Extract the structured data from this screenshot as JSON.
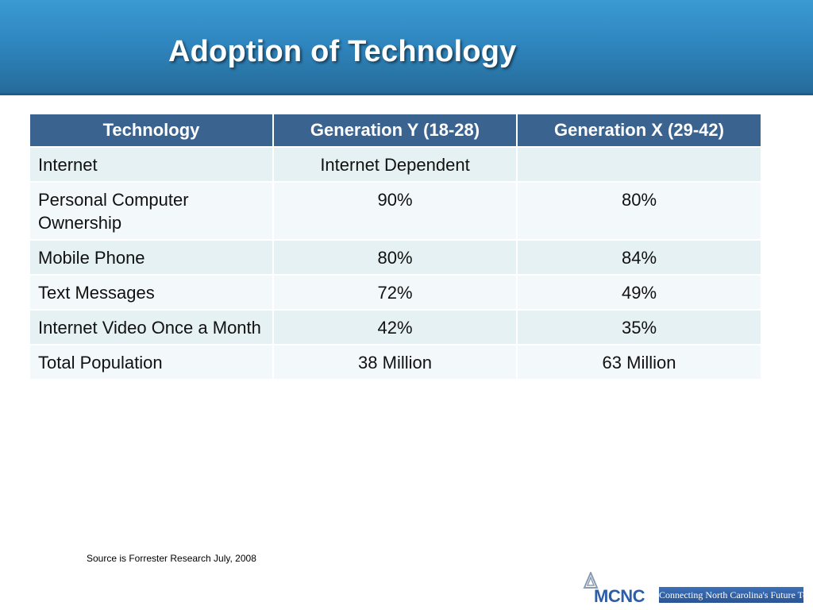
{
  "slide": {
    "title": "Adoption of Technology",
    "source_note": "Source is Forrester Research July, 2008"
  },
  "table": {
    "headers": [
      "Technology",
      "Generation Y (18-28)",
      "Generation X (29-42)"
    ],
    "rows": [
      {
        "technology": "Internet",
        "gen_y": "Internet Dependent",
        "gen_x": ""
      },
      {
        "technology": "Personal Computer Ownership",
        "gen_y": "90%",
        "gen_x": "80%"
      },
      {
        "technology": "Mobile Phone",
        "gen_y": "80%",
        "gen_x": "84%"
      },
      {
        "technology": "Text Messages",
        "gen_y": "72%",
        "gen_x": "49%"
      },
      {
        "technology": "Internet Video Once a Month",
        "gen_y": "42%",
        "gen_x": "35%"
      },
      {
        "technology": "Total Population",
        "gen_y": "38 Million",
        "gen_x": "63 Million"
      }
    ]
  },
  "logo": {
    "name": "MCNC",
    "tagline": "Connecting North Carolina's Future Today"
  },
  "colors": {
    "header_blue": "#2f86bf",
    "table_header": "#3a6390",
    "row_light": "#e6f1f4",
    "row_lighter": "#f3f8fa",
    "logo_blue": "#2b5da8"
  }
}
